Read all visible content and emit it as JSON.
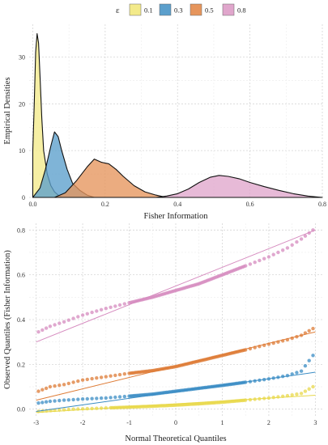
{
  "legend": {
    "title": "ε",
    "items": [
      {
        "label": "0.1",
        "color": "#f3ea8a"
      },
      {
        "label": "0.3",
        "color": "#5b9fcc"
      },
      {
        "label": "0.5",
        "color": "#e6955c"
      },
      {
        "label": "0.8",
        "color": "#e0a6cc"
      }
    ]
  },
  "chart_data": [
    {
      "type": "area",
      "subtype": "density",
      "xlabel": "Fisher Information",
      "ylabel": "Empirical Densities",
      "xlim": [
        -0.01,
        0.8
      ],
      "ylim": [
        0,
        37
      ],
      "xticks": [
        0.0,
        0.2,
        0.4,
        0.6,
        0.8
      ],
      "xtick_labels": [
        "0.0",
        "0.2",
        "0.4",
        "0.6",
        "0.8"
      ],
      "yticks": [
        0,
        10,
        20,
        30
      ],
      "ytick_labels": [
        "0",
        "10",
        "20",
        "30"
      ],
      "grid": true,
      "series": [
        {
          "name": "0.1",
          "color": "#f3ea8a",
          "points": [
            [
              0.0,
              10
            ],
            [
              0.004,
              20
            ],
            [
              0.008,
              31
            ],
            [
              0.012,
              35
            ],
            [
              0.016,
              33
            ],
            [
              0.02,
              26
            ],
            [
              0.025,
              17
            ],
            [
              0.03,
              10
            ],
            [
              0.04,
              5
            ],
            [
              0.05,
              2.5
            ],
            [
              0.06,
              1.2
            ],
            [
              0.07,
              0.5
            ],
            [
              0.08,
              0
            ]
          ]
        },
        {
          "name": "0.3",
          "color": "#5b9fcc",
          "points": [
            [
              0.0,
              0
            ],
            [
              0.02,
              2
            ],
            [
              0.035,
              6
            ],
            [
              0.05,
              11
            ],
            [
              0.06,
              14
            ],
            [
              0.07,
              13
            ],
            [
              0.08,
              10
            ],
            [
              0.095,
              6
            ],
            [
              0.11,
              3
            ],
            [
              0.13,
              1.5
            ],
            [
              0.15,
              0.5
            ],
            [
              0.17,
              0
            ]
          ]
        },
        {
          "name": "0.5",
          "color": "#e6955c",
          "points": [
            [
              0.06,
              0
            ],
            [
              0.09,
              1
            ],
            [
              0.12,
              3.5
            ],
            [
              0.15,
              6.5
            ],
            [
              0.17,
              8.2
            ],
            [
              0.19,
              7.5
            ],
            [
              0.21,
              7.2
            ],
            [
              0.23,
              6
            ],
            [
              0.25,
              4.5
            ],
            [
              0.28,
              2.5
            ],
            [
              0.31,
              1.2
            ],
            [
              0.34,
              0.5
            ],
            [
              0.37,
              0
            ]
          ]
        },
        {
          "name": "0.8",
          "color": "#e0a6cc",
          "points": [
            [
              0.34,
              0
            ],
            [
              0.37,
              0.3
            ],
            [
              0.4,
              0.8
            ],
            [
              0.43,
              1.8
            ],
            [
              0.46,
              3.2
            ],
            [
              0.49,
              4.3
            ],
            [
              0.515,
              4.7
            ],
            [
              0.54,
              4.5
            ],
            [
              0.57,
              4
            ],
            [
              0.6,
              3.2
            ],
            [
              0.64,
              2.3
            ],
            [
              0.68,
              1.5
            ],
            [
              0.72,
              0.8
            ],
            [
              0.76,
              0.3
            ],
            [
              0.8,
              0
            ]
          ]
        }
      ]
    },
    {
      "type": "scatter",
      "subtype": "qq-plot",
      "xlabel": "Normal Theoretical Quantiles",
      "ylabel": "Observed Quantiles (Fisher Information)",
      "xlim": [
        -3.15,
        3.15
      ],
      "ylim": [
        -0.03,
        0.83
      ],
      "xticks": [
        -3,
        -2,
        -1,
        0,
        1,
        2,
        3
      ],
      "xtick_labels": [
        "-3",
        "-2",
        "-1",
        "0",
        "1",
        "2",
        "3"
      ],
      "yticks": [
        0.0,
        0.2,
        0.4,
        0.6,
        0.8
      ],
      "ytick_labels": [
        "0.0",
        "0.2",
        "0.4",
        "0.6",
        "0.8"
      ],
      "grid": true,
      "series": [
        {
          "name": "0.1",
          "color": "#e8d84a",
          "points": [
            [
              -2.95,
              -0.01
            ],
            [
              -2.6,
              -0.005
            ],
            [
              -2.2,
              0.0
            ],
            [
              -1.8,
              0.003
            ],
            [
              -1.4,
              0.006
            ],
            [
              -1.0,
              0.009
            ],
            [
              -0.5,
              0.013
            ],
            [
              0.0,
              0.018
            ],
            [
              0.5,
              0.024
            ],
            [
              1.0,
              0.031
            ],
            [
              1.5,
              0.04
            ],
            [
              2.0,
              0.05
            ],
            [
              2.4,
              0.06
            ],
            [
              2.7,
              0.07
            ],
            [
              2.95,
              0.1
            ]
          ],
          "line": [
            [
              -3,
              -0.015
            ],
            [
              3,
              0.062
            ]
          ]
        },
        {
          "name": "0.3",
          "color": "#3a8cc4",
          "points": [
            [
              -2.95,
              0.027
            ],
            [
              -2.7,
              0.035
            ],
            [
              -2.4,
              0.04
            ],
            [
              -2.0,
              0.045
            ],
            [
              -1.5,
              0.05
            ],
            [
              -1.0,
              0.058
            ],
            [
              -0.5,
              0.067
            ],
            [
              0.0,
              0.08
            ],
            [
              0.5,
              0.093
            ],
            [
              1.0,
              0.106
            ],
            [
              1.5,
              0.12
            ],
            [
              2.0,
              0.135
            ],
            [
              2.4,
              0.15
            ],
            [
              2.7,
              0.17
            ],
            [
              2.95,
              0.24
            ]
          ],
          "line": [
            [
              -3,
              -0.01
            ],
            [
              3,
              0.165
            ]
          ]
        },
        {
          "name": "0.5",
          "color": "#de7b35",
          "points": [
            [
              -2.95,
              0.08
            ],
            [
              -2.7,
              0.1
            ],
            [
              -2.4,
              0.11
            ],
            [
              -2.0,
              0.13
            ],
            [
              -1.5,
              0.145
            ],
            [
              -1.0,
              0.16
            ],
            [
              -0.5,
              0.172
            ],
            [
              0.0,
              0.19
            ],
            [
              0.5,
              0.215
            ],
            [
              1.0,
              0.24
            ],
            [
              1.5,
              0.265
            ],
            [
              2.0,
              0.29
            ],
            [
              2.4,
              0.31
            ],
            [
              2.7,
              0.33
            ],
            [
              2.95,
              0.36
            ]
          ],
          "line": [
            [
              -3,
              0.04
            ],
            [
              3,
              0.345
            ]
          ]
        },
        {
          "name": "0.8",
          "color": "#d68bbf",
          "points": [
            [
              -2.95,
              0.345
            ],
            [
              -2.7,
              0.37
            ],
            [
              -2.4,
              0.39
            ],
            [
              -2.0,
              0.42
            ],
            [
              -1.5,
              0.45
            ],
            [
              -1.0,
              0.475
            ],
            [
              -0.5,
              0.5
            ],
            [
              0.0,
              0.53
            ],
            [
              0.5,
              0.56
            ],
            [
              1.0,
              0.6
            ],
            [
              1.5,
              0.64
            ],
            [
              2.0,
              0.68
            ],
            [
              2.4,
              0.72
            ],
            [
              2.7,
              0.76
            ],
            [
              2.95,
              0.8
            ]
          ],
          "line": [
            [
              -3,
              0.3
            ],
            [
              3,
              0.8
            ]
          ]
        }
      ]
    }
  ]
}
